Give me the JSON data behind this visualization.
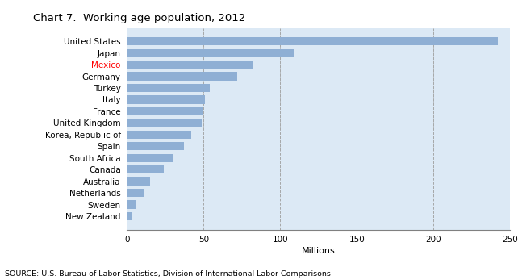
{
  "title": "Chart 7.  Working age population, 2012",
  "source": "SOURCE: U.S. Bureau of Labor Statistics, Division of International Labor Comparisons",
  "xlabel": "Millions",
  "countries": [
    "New Zealand",
    "Sweden",
    "Netherlands",
    "Australia",
    "Canada",
    "South Africa",
    "Spain",
    "Korea, Republic of",
    "United Kingdom",
    "France",
    "Italy",
    "Turkey",
    "Germany",
    "Mexico",
    "Japan",
    "United States"
  ],
  "values": [
    3,
    6,
    11,
    15,
    24,
    30,
    37,
    42,
    49,
    50,
    51,
    54,
    72,
    82,
    109,
    242
  ],
  "bar_color": "#8fafd4",
  "background_color": "#dce9f5",
  "figure_background": "#ffffff",
  "mexico_color": "#ff0000",
  "grid_color": "#a0a0a0",
  "spine_color": "#808080",
  "xlim": [
    0,
    250
  ],
  "xticks": [
    0,
    50,
    100,
    150,
    200,
    250
  ],
  "figsize": [
    6.42,
    3.47
  ],
  "dpi": 100
}
